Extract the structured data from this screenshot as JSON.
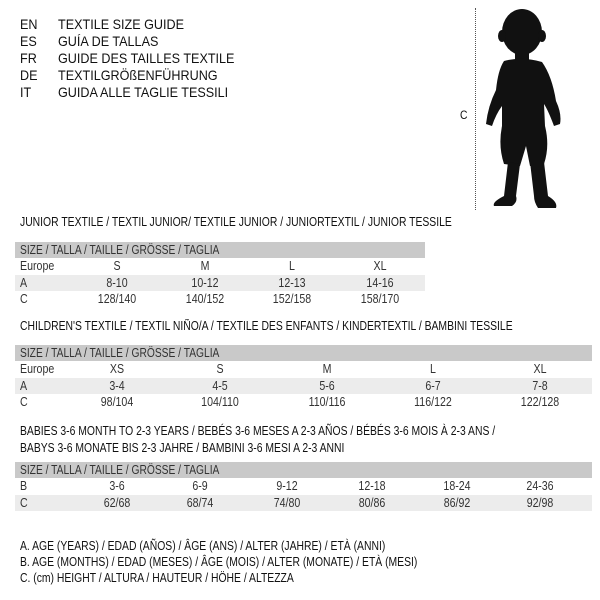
{
  "languages": [
    {
      "code": "EN",
      "text": "TEXTILE SIZE GUIDE"
    },
    {
      "code": "ES",
      "text": "GUÍA DE TALLAS"
    },
    {
      "code": "FR",
      "text": "GUIDE DES TAILLES TEXTILE"
    },
    {
      "code": "DE",
      "text": "TEXTILGRÖßENFÜHRUNG"
    },
    {
      "code": "IT",
      "text": "GUIDA ALLE TAGLIE TESSILI"
    }
  ],
  "figure": {
    "measure_label": "C",
    "icon": "child-silhouette"
  },
  "tables": [
    {
      "title": "JUNIOR TEXTILE / TEXTIL JUNIOR/ TEXTILE JUNIOR / JUNIORTEXTIL / JUNIOR TESSILE",
      "header": "SIZE / TALLA / TAILLE / GRÖSSE / TAGLIA",
      "rows": [
        {
          "label": "Europe",
          "cells": [
            "S",
            "M",
            "L",
            "XL"
          ]
        },
        {
          "label": "A",
          "cells": [
            "8-10",
            "10-12",
            "12-13",
            "14-16"
          ]
        },
        {
          "label": "C",
          "cells": [
            "128/140",
            "140/152",
            "152/158",
            "158/170"
          ]
        }
      ]
    },
    {
      "title": "CHILDREN'S TEXTILE / TEXTIL NIÑO/A / TEXTILE DES ENFANTS / KINDERTEXTIL / BAMBINI TESSILE",
      "header": "SIZE / TALLA / TAILLE / GRÖSSE / TAGLIA",
      "rows": [
        {
          "label": "Europe",
          "cells": [
            "XS",
            "S",
            "M",
            "L",
            "XL"
          ]
        },
        {
          "label": "A",
          "cells": [
            "3-4",
            "4-5",
            "5-6",
            "6-7",
            "7-8"
          ]
        },
        {
          "label": "C",
          "cells": [
            "98/104",
            "104/110",
            "110/116",
            "116/122",
            "122/128"
          ]
        }
      ]
    },
    {
      "title": "BABIES 3-6 MONTH TO 2-3 YEARS / BEBÉS 3-6 MESES A 2-3 AÑOS / BÉBÉS 3-6 MOIS À 2-3 ANS /",
      "title2": "BABYS 3-6 MONATE BIS 2-3 JAHRE / BAMBINI 3-6 MESI A 2-3 ANNI",
      "header": "SIZE / TALLA / TAILLE / GRÖSSE / TAGLIA",
      "rows": [
        {
          "label": "B",
          "cells": [
            "3-6",
            "6-9",
            "9-12",
            "12-18",
            "18-24",
            "24-36"
          ]
        },
        {
          "label": "C",
          "cells": [
            "62/68",
            "68/74",
            "74/80",
            "80/86",
            "86/92",
            "92/98"
          ]
        }
      ]
    }
  ],
  "legend": [
    "A. AGE (YEARS) / EDAD (AÑOS) / ÂGE (ANS) / ALTER (JAHRE) / ETÀ (ANNI)",
    "B. AGE (MONTHS) / EDAD (MESES) / ÂGE (MOIS) / ALTER (MONATE) / ETÀ (MESI)",
    "C. (cm) HEIGHT / ALTURA / HAUTEUR / HÖHE / ALTEZZA"
  ]
}
